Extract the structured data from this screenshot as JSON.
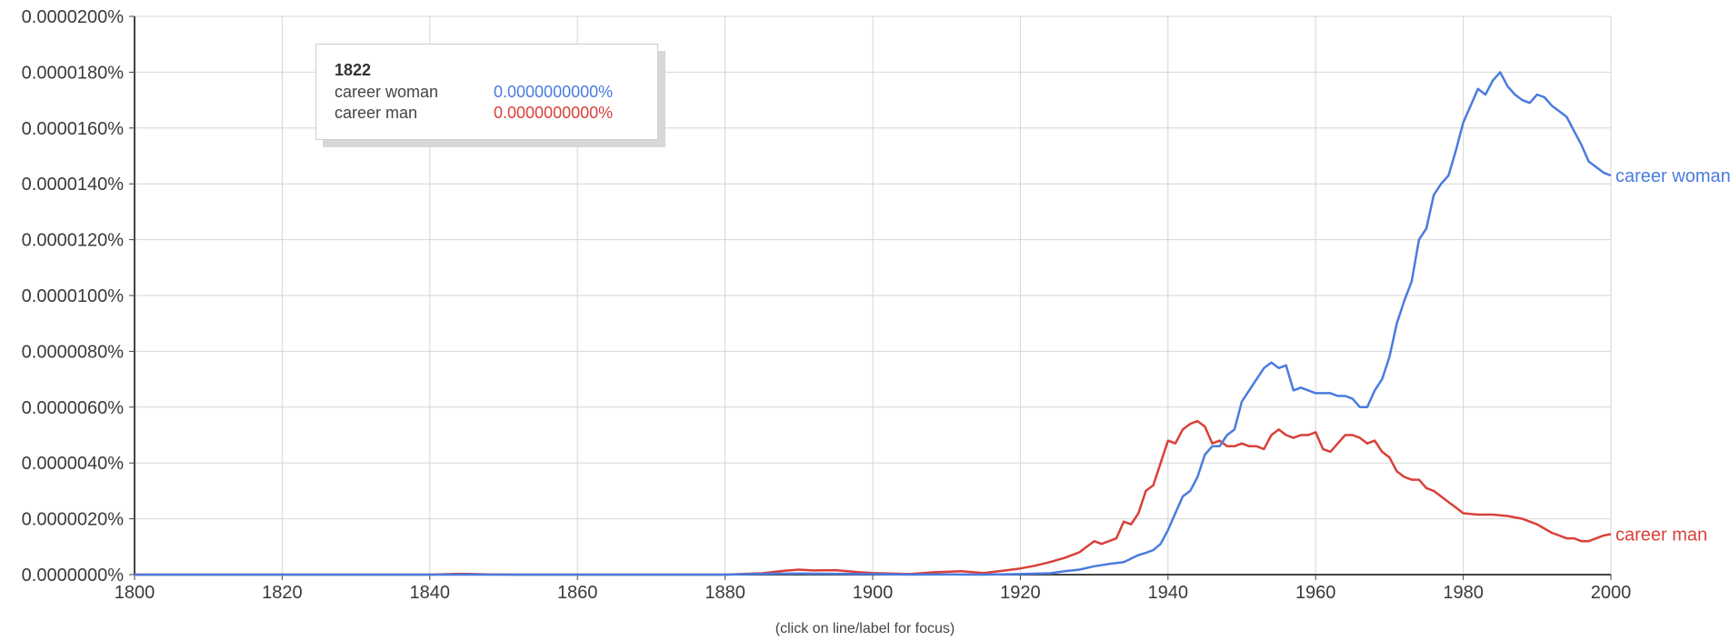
{
  "hint_text": "(click on line/label for focus)",
  "tooltip": {
    "year": "1822",
    "rows": [
      {
        "name": "career woman",
        "value": "0.0000000000%",
        "color": "#4a7bdf"
      },
      {
        "name": "career man",
        "value": "0.0000000000%",
        "color": "#d9403a"
      }
    ]
  },
  "chart_data": {
    "type": "line",
    "title": "",
    "xlabel": "",
    "ylabel": "",
    "xlim": [
      1800,
      2000
    ],
    "ylim": [
      0,
      2e-06
    ],
    "grid": true,
    "x_ticks": [
      1800,
      1820,
      1840,
      1860,
      1880,
      1900,
      1920,
      1940,
      1960,
      1980,
      2000
    ],
    "y_ticks": [
      {
        "value": 0,
        "label": "0.0000000%"
      },
      {
        "value": 2e-07,
        "label": "0.0000020%"
      },
      {
        "value": 4e-07,
        "label": "0.0000040%"
      },
      {
        "value": 6e-07,
        "label": "0.0000060%"
      },
      {
        "value": 8e-07,
        "label": "0.0000080%"
      },
      {
        "value": 1e-06,
        "label": "0.0000100%"
      },
      {
        "value": 1.2e-06,
        "label": "0.0000120%"
      },
      {
        "value": 1.4e-06,
        "label": "0.0000140%"
      },
      {
        "value": 1.6e-06,
        "label": "0.0000160%"
      },
      {
        "value": 1.8e-06,
        "label": "0.0000180%"
      },
      {
        "value": 2e-06,
        "label": "0.0000200%"
      }
    ],
    "series": [
      {
        "name": "career woman",
        "color": "#4a7bdf",
        "x": [
          1800,
          1880,
          1885,
          1890,
          1895,
          1900,
          1905,
          1910,
          1915,
          1920,
          1924,
          1926,
          1928,
          1930,
          1932,
          1934,
          1936,
          1937,
          1938,
          1939,
          1940,
          1942,
          1943,
          1944,
          1945,
          1946,
          1947,
          1948,
          1949,
          1950,
          1951,
          1952,
          1953,
          1954,
          1955,
          1956,
          1957,
          1958,
          1959,
          1960,
          1961,
          1962,
          1963,
          1964,
          1965,
          1966,
          1967,
          1968,
          1969,
          1970,
          1971,
          1972,
          1973,
          1974,
          1975,
          1976,
          1977,
          1978,
          1979,
          1980,
          1981,
          1982,
          1983,
          1984,
          1985,
          1986,
          1987,
          1988,
          1989,
          1990,
          1991,
          1992,
          1993,
          1994,
          1995,
          1996,
          1997,
          1998,
          1999,
          2000
        ],
        "values": [
          0,
          0,
          3e-09,
          4e-09,
          3e-09,
          2e-09,
          0,
          1e-09,
          0,
          2e-09,
          5e-09,
          1.2e-08,
          1.8e-08,
          3e-08,
          3.8e-08,
          4.5e-08,
          7e-08,
          7.8e-08,
          8.8e-08,
          1.1e-07,
          1.6e-07,
          2.8e-07,
          3e-07,
          3.5e-07,
          4.3e-07,
          4.6e-07,
          4.6e-07,
          5e-07,
          5.2e-07,
          6.2e-07,
          6.6e-07,
          7e-07,
          7.4e-07,
          7.6e-07,
          7.4e-07,
          7.5e-07,
          6.6e-07,
          6.7e-07,
          6.6e-07,
          6.5e-07,
          6.5e-07,
          6.5e-07,
          6.4e-07,
          6.4e-07,
          6.3e-07,
          6e-07,
          6e-07,
          6.6e-07,
          7e-07,
          7.8e-07,
          9e-07,
          9.8e-07,
          1.05e-06,
          1.2e-06,
          1.24e-06,
          1.36e-06,
          1.4e-06,
          1.43e-06,
          1.52e-06,
          1.62e-06,
          1.68e-06,
          1.74e-06,
          1.72e-06,
          1.77e-06,
          1.8e-06,
          1.75e-06,
          1.72e-06,
          1.7e-06,
          1.69e-06,
          1.72e-06,
          1.71e-06,
          1.68e-06,
          1.66e-06,
          1.64e-06,
          1.59e-06,
          1.54e-06,
          1.48e-06,
          1.46e-06,
          1.44e-06,
          1.43e-06
        ]
      },
      {
        "name": "career man",
        "color": "#d9403a",
        "x": [
          1800,
          1840,
          1844,
          1848,
          1852,
          1880,
          1885,
          1888,
          1890,
          1892,
          1895,
          1898,
          1900,
          1905,
          1908,
          1912,
          1915,
          1918,
          1920,
          1922,
          1924,
          1926,
          1928,
          1929,
          1930,
          1931,
          1932,
          1933,
          1934,
          1935,
          1936,
          1937,
          1938,
          1939,
          1940,
          1941,
          1942,
          1943,
          1944,
          1945,
          1946,
          1947,
          1948,
          1949,
          1950,
          1951,
          1952,
          1953,
          1954,
          1955,
          1956,
          1957,
          1958,
          1959,
          1960,
          1961,
          1962,
          1963,
          1964,
          1965,
          1966,
          1967,
          1968,
          1969,
          1970,
          1971,
          1972,
          1973,
          1974,
          1975,
          1976,
          1977,
          1978,
          1979,
          1980,
          1982,
          1984,
          1986,
          1988,
          1990,
          1992,
          1993,
          1994,
          1995,
          1996,
          1997,
          1998,
          1999,
          2000
        ],
        "values": [
          0,
          0,
          3e-09,
          1e-09,
          0,
          0,
          5e-09,
          1.4e-08,
          1.8e-08,
          1.5e-08,
          1.6e-08,
          9e-09,
          6e-09,
          2e-09,
          8e-09,
          1.2e-08,
          6e-09,
          1.5e-08,
          2.2e-08,
          3.2e-08,
          4.5e-08,
          6e-08,
          8e-08,
          1e-07,
          1.2e-07,
          1.1e-07,
          1.2e-07,
          1.3e-07,
          1.9e-07,
          1.8e-07,
          2.2e-07,
          3e-07,
          3.2e-07,
          4e-07,
          4.8e-07,
          4.7e-07,
          5.2e-07,
          5.4e-07,
          5.5e-07,
          5.3e-07,
          4.7e-07,
          4.8e-07,
          4.6e-07,
          4.6e-07,
          4.7e-07,
          4.6e-07,
          4.6e-07,
          4.5e-07,
          5e-07,
          5.2e-07,
          5e-07,
          4.9e-07,
          5e-07,
          5e-07,
          5.1e-07,
          4.5e-07,
          4.4e-07,
          4.7e-07,
          5e-07,
          5e-07,
          4.9e-07,
          4.7e-07,
          4.8e-07,
          4.4e-07,
          4.2e-07,
          3.7e-07,
          3.5e-07,
          3.4e-07,
          3.4e-07,
          3.1e-07,
          3e-07,
          2.8e-07,
          2.6e-07,
          2.4e-07,
          2.2e-07,
          2.15e-07,
          2.15e-07,
          2.1e-07,
          2e-07,
          1.8e-07,
          1.5e-07,
          1.4e-07,
          1.3e-07,
          1.3e-07,
          1.2e-07,
          1.2e-07,
          1.3e-07,
          1.4e-07,
          1.45e-07
        ]
      }
    ]
  }
}
